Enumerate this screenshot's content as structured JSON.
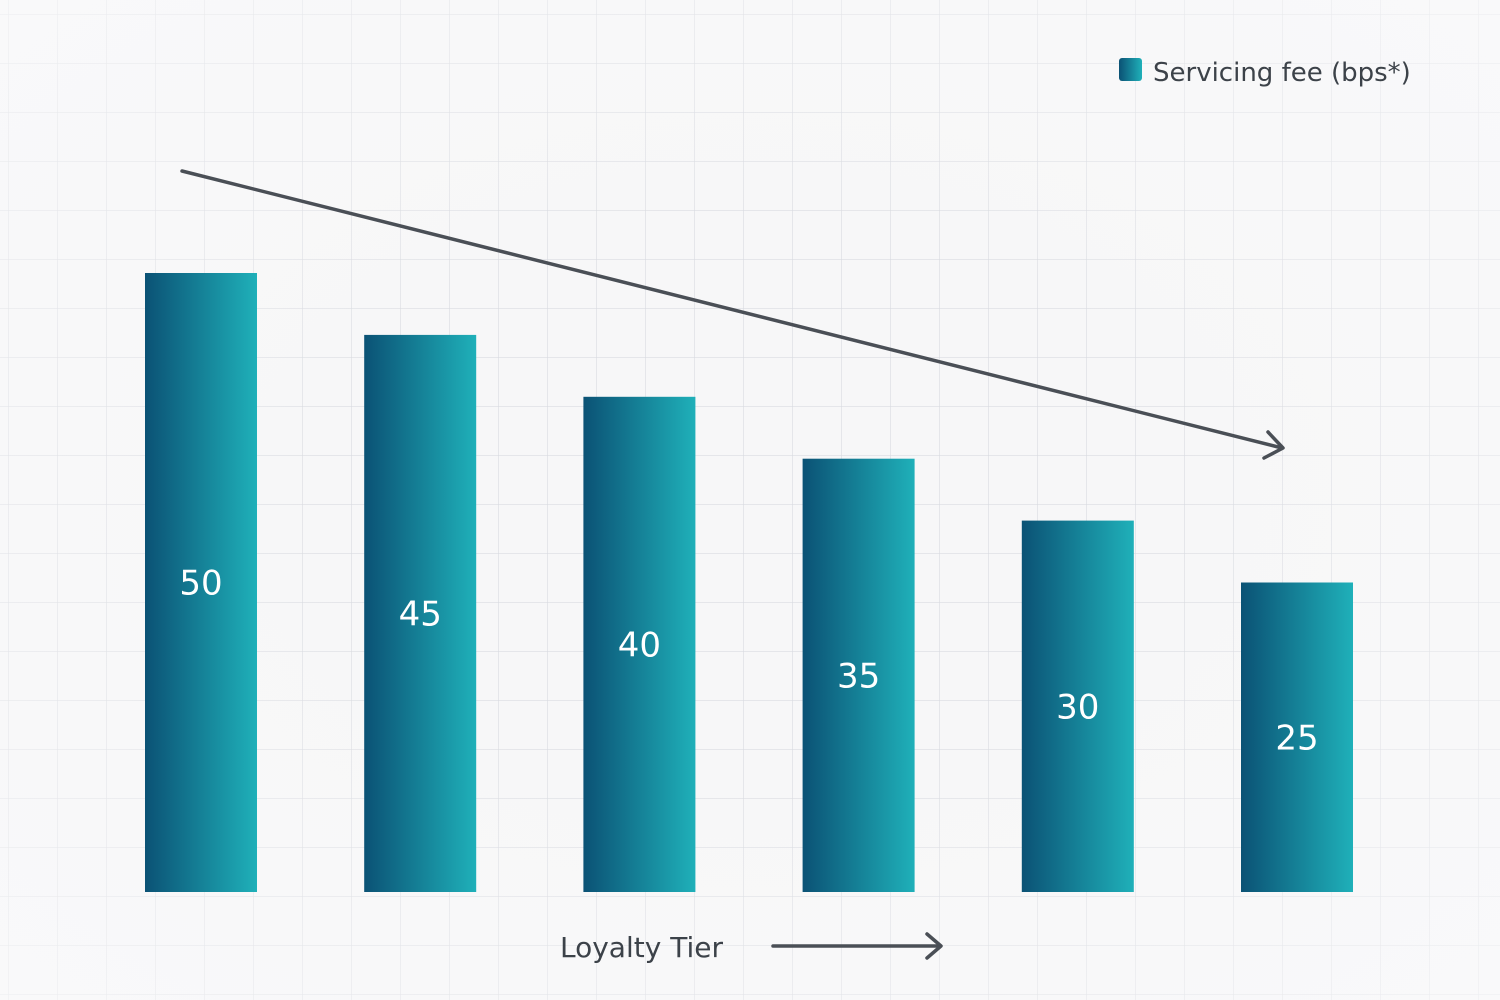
{
  "chart_data": {
    "type": "bar",
    "values": [
      50,
      45,
      40,
      35,
      30,
      25
    ],
    "data_labels": [
      "50",
      "45",
      "40",
      "35",
      "30",
      "25"
    ],
    "series": [
      {
        "name": "Servicing fee (bps*)",
        "values": [
          50,
          45,
          40,
          35,
          30,
          25
        ]
      }
    ],
    "xlabel": "Loyalty Tier",
    "ylim": [
      0,
      50
    ],
    "grid": true,
    "legend_position": "top-right",
    "trend_arrow": "decreasing",
    "colors": {
      "bar_start": "#0b5275",
      "bar_end": "#1fb0b9",
      "text": "#3c4249",
      "arrow": "#4a4f56"
    }
  }
}
